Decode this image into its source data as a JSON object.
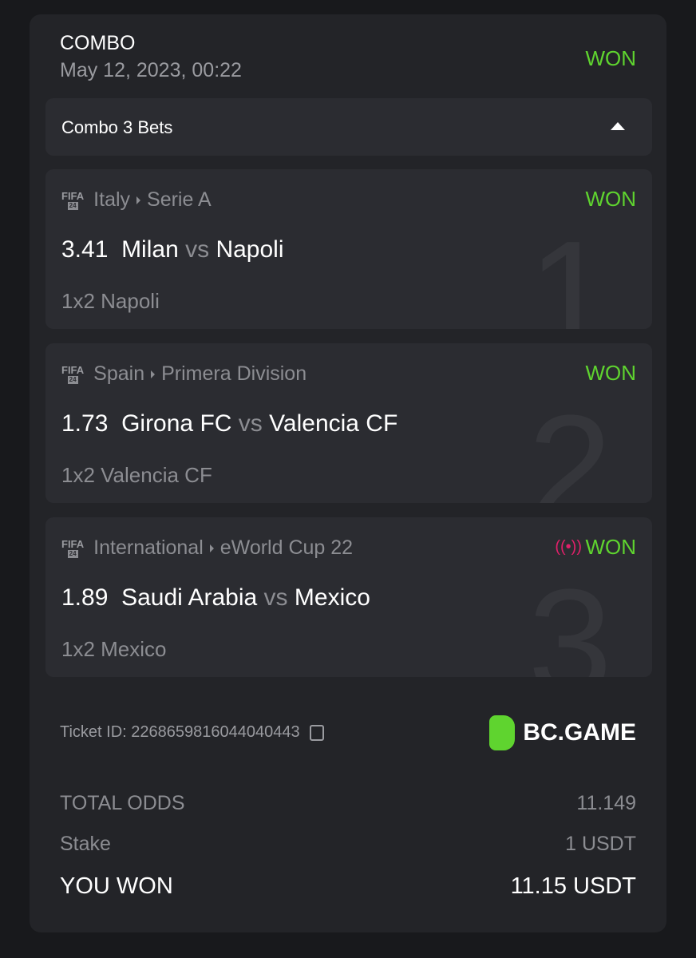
{
  "header": {
    "title": "COMBO",
    "date": "May 12, 2023, 00:22",
    "status": "WON"
  },
  "toggle": {
    "label": "Combo 3 Bets"
  },
  "legs": [
    {
      "index": "1",
      "game": "FIFA",
      "edition": "24",
      "region": "Italy",
      "league": "Serie A",
      "odds": "3.41",
      "home": "Milan",
      "vs": "vs",
      "away": "Napoli",
      "pick": "1x2 Napoli",
      "status": "WON",
      "live": false
    },
    {
      "index": "2",
      "game": "FIFA",
      "edition": "24",
      "region": "Spain",
      "league": "Primera Division",
      "odds": "1.73",
      "home": "Girona FC",
      "vs": "vs",
      "away": "Valencia CF",
      "pick": "1x2 Valencia CF",
      "status": "WON",
      "live": false
    },
    {
      "index": "3",
      "game": "FIFA",
      "edition": "24",
      "region": "International",
      "league": "eWorld Cup 22",
      "odds": "1.89",
      "home": "Saudi Arabia",
      "vs": "vs",
      "away": "Mexico",
      "pick": "1x2 Mexico",
      "status": "WON",
      "live": true
    }
  ],
  "ticket": {
    "label": "Ticket ID: 2268659816044040443"
  },
  "brand": {
    "name": "BC.GAME",
    "color": "#5fd42f"
  },
  "summary": {
    "total_odds_label": "TOTAL ODDS",
    "total_odds": "11.149",
    "stake_label": "Stake",
    "stake": "1 USDT",
    "won_label": "YOU WON",
    "won": "11.15 USDT"
  }
}
